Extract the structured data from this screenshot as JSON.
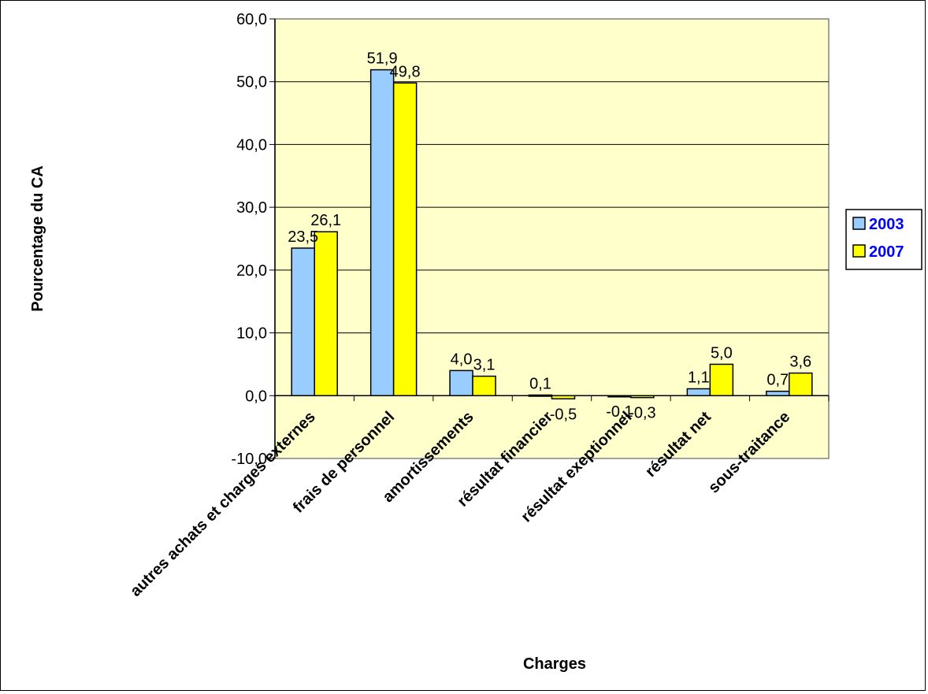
{
  "chart_data": {
    "type": "bar",
    "title": "",
    "xlabel": "Charges",
    "ylabel": "Pourcentage du CA",
    "ylim": [
      -10,
      60
    ],
    "yticks": [
      "-10,0",
      "0,0",
      "10,0",
      "20,0",
      "30,0",
      "40,0",
      "50,0",
      "60,0"
    ],
    "categories": [
      "autres achats et charges externes",
      "frais de personnel",
      "amortissements",
      "résultat financier",
      "résultat exeptionnel",
      "résultat net",
      "sous-traitance"
    ],
    "series": [
      {
        "name": "2003",
        "color": "#99ccff",
        "values": [
          23.5,
          51.9,
          4.0,
          0.1,
          -0.1,
          1.1,
          0.7
        ],
        "labels": [
          "23,5",
          "51,9",
          "4,0",
          "0,1",
          "-0,1",
          "1,1",
          "0,7"
        ]
      },
      {
        "name": "2007",
        "color": "#ffff00",
        "values": [
          26.1,
          49.8,
          3.1,
          -0.5,
          -0.3,
          5.0,
          3.6
        ],
        "labels": [
          "26,1",
          "49,8",
          "3,1",
          "-0,5",
          "-0,3",
          "5,0",
          "3,6"
        ]
      }
    ],
    "plot_background": "#ffffcc",
    "grid": true,
    "legend_position": "right",
    "legend_text_color": "#0000ff"
  }
}
